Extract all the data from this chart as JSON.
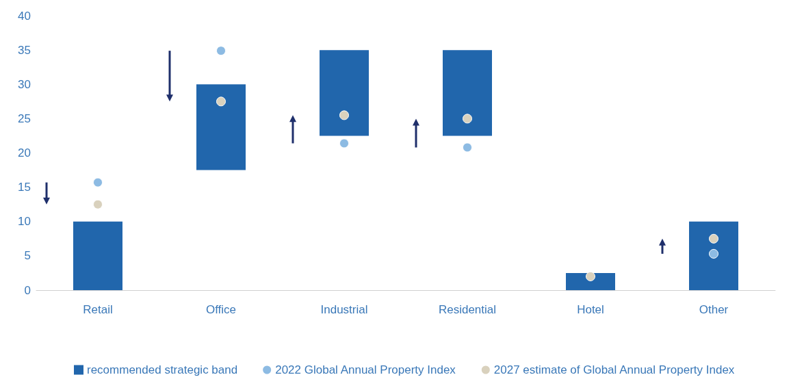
{
  "chart_data": {
    "type": "bar",
    "categories": [
      "Retail",
      "Office",
      "Industrial",
      "Residential",
      "Hotel",
      "Other"
    ],
    "series": [
      {
        "name": "recommended strategic band",
        "type": "bar",
        "color": "#2166ac",
        "base": [
          0,
          17.5,
          22.5,
          22.5,
          0,
          0
        ],
        "values": [
          10,
          12.5,
          12.5,
          12.5,
          2.5,
          10
        ]
      },
      {
        "name": "2022 Global Annual Property Index",
        "type": "scatter",
        "color": "#8dbbe3",
        "values": [
          15.7,
          34.9,
          21.4,
          20.8,
          null,
          5.3
        ]
      },
      {
        "name": "2027 estimate of Global Annual Property Index",
        "type": "scatter",
        "color": "#d9d1bd",
        "values": [
          12.5,
          27.5,
          25.5,
          25,
          2,
          7.5
        ]
      }
    ],
    "ylim": [
      0,
      40
    ],
    "yticks": [
      0,
      5,
      10,
      15,
      20,
      25,
      30,
      35,
      40
    ],
    "grid": false,
    "legend": "bottom",
    "marker": "circle"
  }
}
